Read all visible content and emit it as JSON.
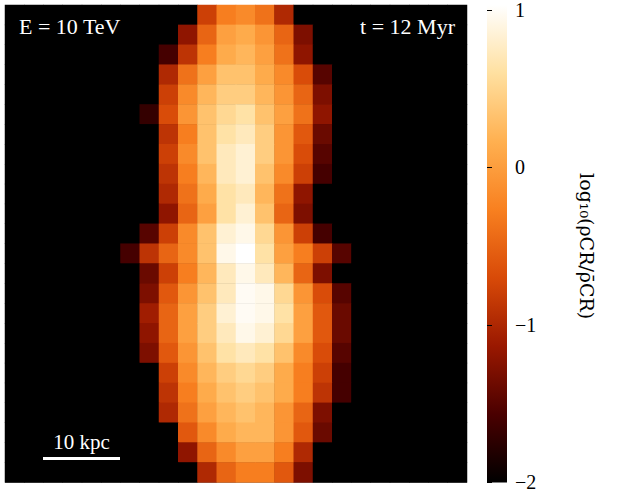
{
  "chart_data": {
    "type": "heatmap",
    "annotations": [
      "E = 10 TeV",
      "t = 12 Myr"
    ],
    "scale_bar": {
      "label": "10 kpc",
      "length": 10
    },
    "xlim": [
      -30,
      30
    ],
    "ylim": [
      -31,
      31
    ],
    "tick_labels": false,
    "cells": [
      [
        -2,
        -2,
        -2,
        -2,
        -2,
        -2,
        -2,
        -2,
        -2,
        -2,
        -0.8,
        -0.3,
        -0.2,
        -0.4,
        -1.0,
        -2,
        -2,
        -2,
        -2,
        -2,
        -2,
        -2,
        -2,
        -2
      ],
      [
        -2,
        -2,
        -2,
        -2,
        -2,
        -2,
        -2,
        -2,
        -2,
        -1.2,
        -0.5,
        0.0,
        0.1,
        -0.1,
        -0.5,
        -1.3,
        -2,
        -2,
        -2,
        -2,
        -2,
        -2,
        -2,
        -2
      ],
      [
        -2,
        -2,
        -2,
        -2,
        -2,
        -2,
        -2,
        -2,
        -1.6,
        -0.9,
        -0.3,
        0.1,
        0.2,
        0.0,
        -0.4,
        -1.2,
        -2,
        -2,
        -2,
        -2,
        -2,
        -2,
        -2,
        -2
      ],
      [
        -2,
        -2,
        -2,
        -2,
        -2,
        -2,
        -2,
        -2,
        -1.0,
        -0.4,
        0.0,
        0.3,
        0.3,
        0.1,
        -0.2,
        -0.7,
        -1.5,
        -2,
        -2,
        -2,
        -2,
        -2,
        -2,
        -2
      ],
      [
        -2,
        -2,
        -2,
        -2,
        -2,
        -2,
        -2,
        -2,
        -0.8,
        -0.2,
        0.2,
        0.4,
        0.4,
        0.2,
        -0.1,
        -0.5,
        -1.3,
        -2,
        -2,
        -2,
        -2,
        -2,
        -2,
        -2
      ],
      [
        -2,
        -2,
        -2,
        -2,
        -2,
        -2,
        -2,
        -1.7,
        -0.7,
        -0.1,
        0.3,
        0.5,
        0.6,
        0.3,
        0.0,
        -0.4,
        -1.2,
        -2,
        -2,
        -2,
        -2,
        -2,
        -2,
        -2
      ],
      [
        -2,
        -2,
        -2,
        -2,
        -2,
        -2,
        -2,
        -2,
        -0.9,
        -0.3,
        0.3,
        0.6,
        0.7,
        0.4,
        -0.1,
        -0.6,
        -1.4,
        -2,
        -2,
        -2,
        -2,
        -2,
        -2,
        -2
      ],
      [
        -2,
        -2,
        -2,
        -2,
        -2,
        -2,
        -2,
        -2,
        -0.8,
        -0.2,
        0.3,
        0.7,
        0.8,
        0.4,
        -0.1,
        -0.7,
        -1.5,
        -2,
        -2,
        -2,
        -2,
        -2,
        -2,
        -2
      ],
      [
        -2,
        -2,
        -2,
        -2,
        -2,
        -2,
        -2,
        -2,
        -0.9,
        -0.3,
        0.2,
        0.7,
        0.8,
        0.3,
        -0.2,
        -0.8,
        -1.6,
        -2,
        -2,
        -2,
        -2,
        -2,
        -2,
        -2
      ],
      [
        -2,
        -2,
        -2,
        -2,
        -2,
        -2,
        -2,
        -2,
        -1.0,
        -0.4,
        0.1,
        0.6,
        0.7,
        0.2,
        -0.4,
        -1.2,
        -2,
        -2,
        -2,
        -2,
        -2,
        -2,
        -2,
        -2
      ],
      [
        -2,
        -2,
        -2,
        -2,
        -2,
        -2,
        -2,
        -2,
        -1.2,
        -0.5,
        0.0,
        0.6,
        0.8,
        0.3,
        -0.5,
        -1.3,
        -2,
        -2,
        -2,
        -2,
        -2,
        -2,
        -2,
        -2
      ],
      [
        -2,
        -2,
        -2,
        -2,
        -2,
        -2,
        -2,
        -1.5,
        -0.8,
        -0.2,
        0.3,
        0.8,
        0.9,
        0.5,
        -0.1,
        -0.8,
        -1.6,
        -2,
        -2,
        -2,
        -2,
        -2,
        -2,
        -2
      ],
      [
        -2,
        -2,
        -2,
        -2,
        -2,
        -2,
        -1.6,
        -0.9,
        -0.5,
        -0.2,
        0.3,
        0.9,
        1.0,
        0.6,
        0.0,
        -0.3,
        -0.8,
        -1.5,
        -2,
        -2,
        -2,
        -2,
        -2,
        -2
      ],
      [
        -2,
        -2,
        -2,
        -2,
        -2,
        -2,
        -2,
        -1.4,
        -0.8,
        -0.3,
        0.2,
        0.7,
        0.9,
        0.7,
        0.2,
        -0.5,
        -1.3,
        -2,
        -2,
        -2,
        -2,
        -2,
        -2,
        -2
      ],
      [
        -2,
        -2,
        -2,
        -2,
        -2,
        -2,
        -2,
        -1.3,
        -0.6,
        -0.1,
        0.3,
        0.7,
        0.95,
        0.9,
        0.5,
        -0.1,
        -0.7,
        -1.5,
        -2,
        -2,
        -2,
        -2,
        -2,
        -2
      ],
      [
        -2,
        -2,
        -2,
        -2,
        -2,
        -2,
        -2,
        -1.1,
        -0.5,
        0.0,
        0.4,
        0.8,
        0.95,
        0.9,
        0.6,
        0.0,
        -0.6,
        -1.4,
        -2,
        -2,
        -2,
        -2,
        -2,
        -2
      ],
      [
        -2,
        -2,
        -2,
        -2,
        -2,
        -2,
        -2,
        -1.2,
        -0.5,
        0.0,
        0.4,
        0.7,
        0.9,
        0.8,
        0.5,
        0.0,
        -0.6,
        -1.4,
        -2,
        -2,
        -2,
        -2,
        -2,
        -2
      ],
      [
        -2,
        -2,
        -2,
        -2,
        -2,
        -2,
        -2,
        -1.3,
        -0.6,
        -0.1,
        0.3,
        0.6,
        0.7,
        0.6,
        0.3,
        -0.2,
        -0.7,
        -1.5,
        -2,
        -2,
        -2,
        -2,
        -2,
        -2
      ],
      [
        -2,
        -2,
        -2,
        -2,
        -2,
        -2,
        -2,
        -2,
        -0.8,
        -0.2,
        0.2,
        0.4,
        0.5,
        0.4,
        0.1,
        -0.3,
        -0.8,
        -1.6,
        -2,
        -2,
        -2,
        -2,
        -2,
        -2
      ],
      [
        -2,
        -2,
        -2,
        -2,
        -2,
        -2,
        -2,
        -2,
        -0.9,
        -0.3,
        0.1,
        0.3,
        0.4,
        0.3,
        0.1,
        -0.3,
        -0.9,
        -1.6,
        -2,
        -2,
        -2,
        -2,
        -2,
        -2
      ],
      [
        -2,
        -2,
        -2,
        -2,
        -2,
        -2,
        -2,
        -2,
        -1.0,
        -0.4,
        0.0,
        0.2,
        0.3,
        0.2,
        -0.1,
        -0.5,
        -1.3,
        -2,
        -2,
        -2,
        -2,
        -2,
        -2,
        -2
      ],
      [
        -2,
        -2,
        -2,
        -2,
        -2,
        -2,
        -2,
        -2,
        -2,
        -0.6,
        -0.2,
        0.1,
        0.2,
        0.2,
        -0.1,
        -0.6,
        -1.4,
        -2,
        -2,
        -2,
        -2,
        -2,
        -2,
        -2
      ],
      [
        -2,
        -2,
        -2,
        -2,
        -2,
        -2,
        -2,
        -2,
        -2,
        -1.2,
        -0.5,
        -0.2,
        0.0,
        0.0,
        -0.3,
        -1.0,
        -2,
        -2,
        -2,
        -2,
        -2,
        -2,
        -2,
        -2
      ],
      [
        -2,
        -2,
        -2,
        -2,
        -2,
        -2,
        -2,
        -2,
        -2,
        -2,
        -1.0,
        -0.5,
        -0.3,
        -0.3,
        -0.6,
        -1.3,
        -2,
        -2,
        -2,
        -2,
        -2,
        -2,
        -2,
        -2
      ]
    ],
    "colorbar": {
      "label": "log₁₀(ρCR/ρ̄CR)",
      "range": [
        -2,
        1
      ],
      "ticks": [
        1,
        0,
        {
          "value": -1,
          "label": "−1"
        },
        {
          "value": -2,
          "label": "−2"
        }
      ]
    }
  }
}
